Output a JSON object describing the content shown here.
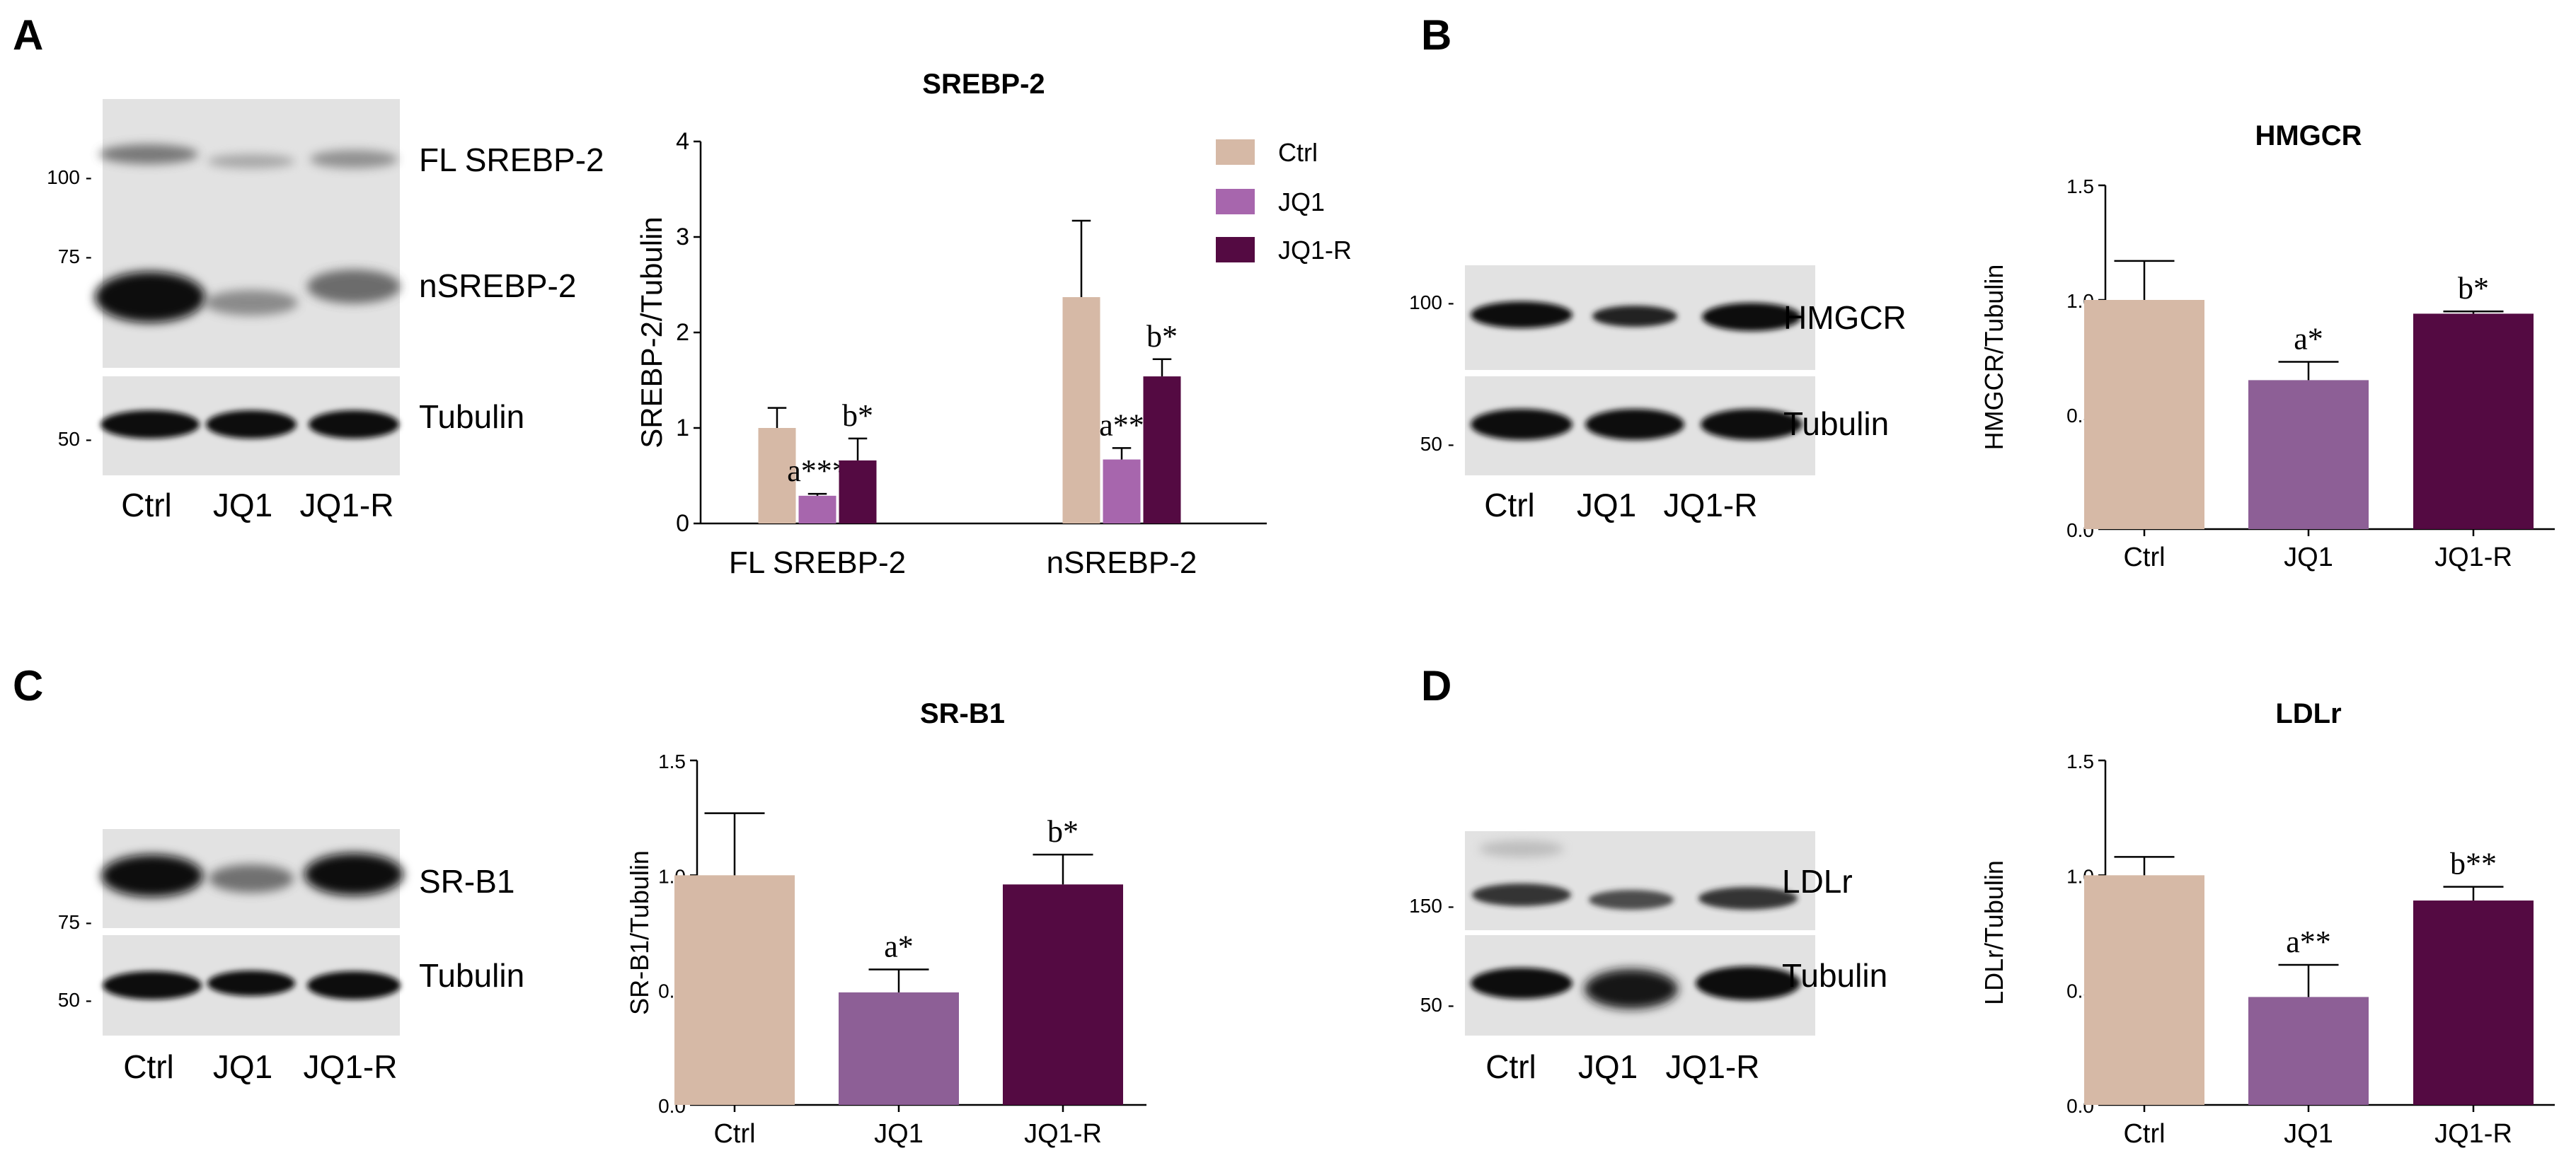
{
  "panels": {
    "A": {
      "label": "A",
      "blot": {
        "mw_markers": [
          "100 -",
          "75 -",
          "50 -"
        ],
        "band_labels": [
          "FL SREBP-2",
          "nSREBP-2",
          "Tubulin"
        ],
        "lanes": [
          "Ctrl",
          "JQ1",
          "JQ1-R"
        ]
      }
    },
    "B": {
      "label": "B",
      "blot": {
        "mw_markers": [
          "100 -",
          "50 -"
        ],
        "band_labels": [
          "HMGCR",
          "Tubulin"
        ],
        "lanes": [
          "Ctrl",
          "JQ1",
          "JQ1-R"
        ]
      }
    },
    "C": {
      "label": "C",
      "blot": {
        "mw_markers": [
          "75 -",
          "50 -"
        ],
        "band_labels": [
          "SR-B1",
          "Tubulin"
        ],
        "lanes": [
          "Ctrl",
          "JQ1",
          "JQ1-R"
        ]
      }
    },
    "D": {
      "label": "D",
      "blot": {
        "mw_markers": [
          "150 -",
          "50 -"
        ],
        "band_labels": [
          "LDLr",
          "Tubulin"
        ],
        "lanes": [
          "Ctrl",
          "JQ1",
          "JQ1-R"
        ]
      }
    }
  },
  "chart_data": [
    {
      "id": "A",
      "type": "bar",
      "title": "SREBP-2",
      "ylabel": "SREBP-2/Tubulin",
      "ylim": [
        0,
        4
      ],
      "yticks": [
        0,
        1,
        2,
        3,
        4
      ],
      "categories": [
        "FL SREBP-2",
        "nSREBP-2"
      ],
      "legend": "top-right",
      "series": [
        {
          "name": "Ctrl",
          "color": "#d6b9a6",
          "values": [
            1.0,
            2.37
          ],
          "errors": [
            0.21,
            0.8
          ],
          "annotations": [
            "",
            ""
          ]
        },
        {
          "name": "JQ1",
          "color": "#a766ad",
          "values": [
            0.29,
            0.67
          ],
          "errors": [
            0.02,
            0.12
          ],
          "annotations": [
            "a***",
            "a**"
          ]
        },
        {
          "name": "JQ1-R",
          "color": "#540a42",
          "values": [
            0.66,
            1.54
          ],
          "errors": [
            0.23,
            0.18
          ],
          "annotations": [
            "b*",
            "b*"
          ]
        }
      ]
    },
    {
      "id": "B",
      "type": "bar",
      "title": "HMGCR",
      "ylabel": "HMGCR/Tubulin",
      "ylim": [
        0,
        1.5
      ],
      "yticks": [
        "0.0",
        "0.5",
        "1.0",
        "1.5"
      ],
      "categories": [
        "Ctrl",
        "JQ1",
        "JQ1-R"
      ],
      "colors": [
        "#d6b9a6",
        "#8d5f96",
        "#540a42"
      ],
      "values": [
        1.0,
        0.65,
        0.94
      ],
      "errors": [
        0.17,
        0.08,
        0.01
      ],
      "annotations": [
        "",
        "a*",
        "b*"
      ]
    },
    {
      "id": "C",
      "type": "bar",
      "title": "SR-B1",
      "ylabel": "SR-B1/Tubulin",
      "ylim": [
        0,
        1.5
      ],
      "yticks": [
        "0.0",
        "0.5",
        "1.0",
        "1.5"
      ],
      "categories": [
        "Ctrl",
        "JQ1",
        "JQ1-R"
      ],
      "colors": [
        "#d6b9a6",
        "#8d5f96",
        "#540a42"
      ],
      "values": [
        1.0,
        0.49,
        0.96
      ],
      "errors": [
        0.27,
        0.1,
        0.13
      ],
      "annotations": [
        "",
        "a*",
        "b*"
      ]
    },
    {
      "id": "D",
      "type": "bar",
      "title": "LDLr",
      "ylabel": "LDLr/Tubulin",
      "ylim": [
        0,
        1.5
      ],
      "yticks": [
        "0.0",
        "0.5",
        "1.0",
        "1.5"
      ],
      "categories": [
        "Ctrl",
        "JQ1",
        "JQ1-R"
      ],
      "colors": [
        "#d6b9a6",
        "#8d5f96",
        "#540a42"
      ],
      "values": [
        1.0,
        0.47,
        0.89
      ],
      "errors": [
        0.08,
        0.14,
        0.06
      ],
      "annotations": [
        "",
        "a**",
        "b**"
      ]
    }
  ]
}
